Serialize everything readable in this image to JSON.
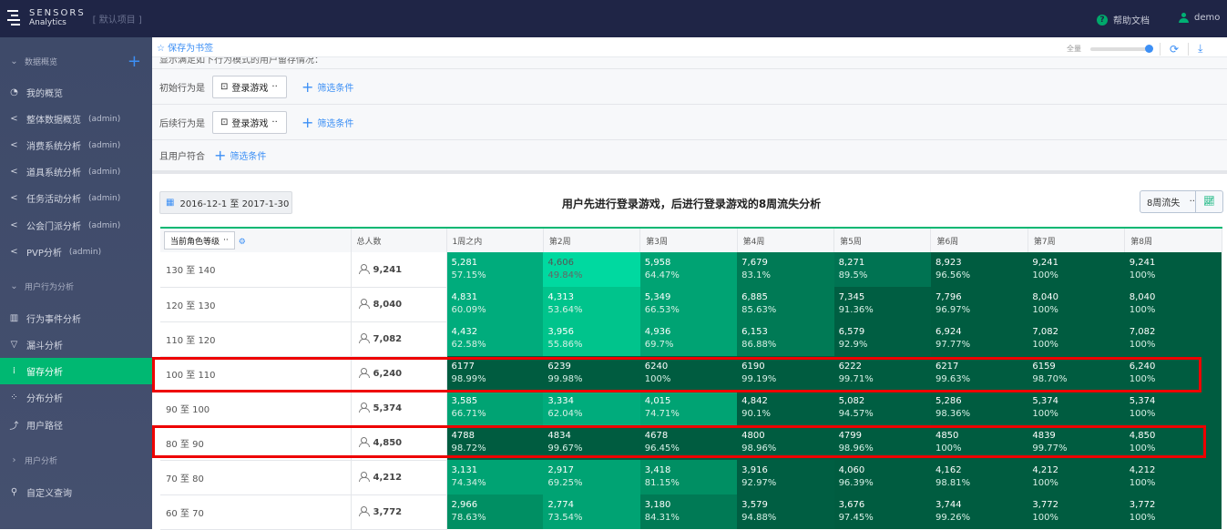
{
  "topbar": {
    "brand_line1": "SENSORS",
    "brand_line2": "Analytics",
    "project": "[ 默认项目 ]",
    "help": "帮助文档",
    "user": "demo"
  },
  "sidebar": {
    "items": [
      {
        "type": "section",
        "label": "数据概览",
        "icon": "chevron-down"
      },
      {
        "label": "我的概览",
        "icon": "dashboard"
      },
      {
        "label": "整体数据概览",
        "suffix": "(admin)",
        "icon": "share"
      },
      {
        "label": "消费系统分析",
        "suffix": "(admin)",
        "icon": "share"
      },
      {
        "label": "道具系统分析",
        "suffix": "(admin)",
        "icon": "share"
      },
      {
        "label": "任务活动分析",
        "suffix": "(admin)",
        "icon": "share"
      },
      {
        "label": "公会门派分析",
        "suffix": "(admin)",
        "icon": "share"
      },
      {
        "label": "PVP分析",
        "suffix": "(admin)",
        "icon": "share"
      },
      {
        "type": "section",
        "label": "用户行为分析",
        "icon": "chevron-down"
      },
      {
        "label": "行为事件分析",
        "icon": "bar-chart"
      },
      {
        "label": "漏斗分析",
        "icon": "funnel"
      },
      {
        "label": "留存分析",
        "icon": "retention",
        "active": true
      },
      {
        "label": "分布分析",
        "icon": "distribution"
      },
      {
        "label": "用户路径",
        "icon": "path"
      },
      {
        "type": "section",
        "label": "用户分析",
        "icon": "chevron-right"
      },
      {
        "label": "自定义查询",
        "icon": "query"
      }
    ]
  },
  "header": {
    "bookmark": "保存为书签",
    "zoom_label": "全量"
  },
  "conditions": {
    "description": "显示满足如下行为模式的用户留存情况：",
    "initial_label": "初始行为是",
    "initial_event": "登录游戏",
    "followup_label": "后续行为是",
    "followup_event": "登录游戏",
    "user_label": "且用户符合",
    "filter_label": "筛选条件"
  },
  "report": {
    "date_range": "2016-12-1 至 2017-1-30",
    "title": "用户先进行登录游戏，后进行登录游戏的8周流失分析",
    "mode_select": "8周流失"
  },
  "table": {
    "group_select": "当前角色等级",
    "total_header": "总人数",
    "week_headers": [
      "1周之内",
      "第2周",
      "第3周",
      "第4周",
      "第5周",
      "第6周",
      "第7周",
      "第8周"
    ],
    "rows": [
      {
        "group": "130 至 140",
        "total": "9,241",
        "cells": [
          [
            "5,281",
            "57.15%"
          ],
          [
            "4,606",
            "49.84%"
          ],
          [
            "5,958",
            "64.47%"
          ],
          [
            "7,679",
            "83.1%"
          ],
          [
            "8,271",
            "89.5%"
          ],
          [
            "8,923",
            "96.56%"
          ],
          [
            "9,241",
            "100%"
          ],
          [
            "9,241",
            "100%"
          ]
        ]
      },
      {
        "group": "120 至 130",
        "total": "8,040",
        "cells": [
          [
            "4,831",
            "60.09%"
          ],
          [
            "4,313",
            "53.64%"
          ],
          [
            "5,349",
            "66.53%"
          ],
          [
            "6,885",
            "85.63%"
          ],
          [
            "7,345",
            "91.36%"
          ],
          [
            "7,796",
            "96.97%"
          ],
          [
            "8,040",
            "100%"
          ],
          [
            "8,040",
            "100%"
          ]
        ]
      },
      {
        "group": "110 至 120",
        "total": "7,082",
        "cells": [
          [
            "4,432",
            "62.58%"
          ],
          [
            "3,956",
            "55.86%"
          ],
          [
            "4,936",
            "69.7%"
          ],
          [
            "6,153",
            "86.88%"
          ],
          [
            "6,579",
            "92.9%"
          ],
          [
            "6,924",
            "97.77%"
          ],
          [
            "7,082",
            "100%"
          ],
          [
            "7,082",
            "100%"
          ]
        ]
      },
      {
        "group": "100 至 110",
        "total": "6,240",
        "highlighted": true,
        "cells": [
          [
            "6177",
            "98.99%"
          ],
          [
            "6239",
            "99.98%"
          ],
          [
            "6240",
            "100%"
          ],
          [
            "6190",
            "99.19%"
          ],
          [
            "6222",
            "99.71%"
          ],
          [
            "6217",
            "99.63%"
          ],
          [
            "6159",
            "98.70%"
          ],
          [
            "6,240",
            "100%"
          ]
        ]
      },
      {
        "group": "90 至 100",
        "total": "5,374",
        "cells": [
          [
            "3,585",
            "66.71%"
          ],
          [
            "3,334",
            "62.04%"
          ],
          [
            "4,015",
            "74.71%"
          ],
          [
            "4,842",
            "90.1%"
          ],
          [
            "5,082",
            "94.57%"
          ],
          [
            "5,286",
            "98.36%"
          ],
          [
            "5,374",
            "100%"
          ],
          [
            "5,374",
            "100%"
          ]
        ]
      },
      {
        "group": "80 至 90",
        "total": "4,850",
        "highlighted": true,
        "cells": [
          [
            "4788",
            "98.72%"
          ],
          [
            "4834",
            "99.67%"
          ],
          [
            "4678",
            "96.45%"
          ],
          [
            "4800",
            "98.96%"
          ],
          [
            "4799",
            "98.96%"
          ],
          [
            "4850",
            "100%"
          ],
          [
            "4839",
            "99.77%"
          ],
          [
            "4,850",
            "100%"
          ]
        ]
      },
      {
        "group": "70 至 80",
        "total": "4,212",
        "cells": [
          [
            "3,131",
            "74.34%"
          ],
          [
            "2,917",
            "69.25%"
          ],
          [
            "3,418",
            "81.15%"
          ],
          [
            "3,916",
            "92.97%"
          ],
          [
            "4,060",
            "96.39%"
          ],
          [
            "4,162",
            "98.81%"
          ],
          [
            "4,212",
            "100%"
          ],
          [
            "4,212",
            "100%"
          ]
        ]
      },
      {
        "group": "60 至 70",
        "total": "3,772",
        "cells": [
          [
            "2,966",
            "78.63%"
          ],
          [
            "2,774",
            "73.54%"
          ],
          [
            "3,180",
            "84.31%"
          ],
          [
            "3,579",
            "94.88%"
          ],
          [
            "3,676",
            "97.45%"
          ],
          [
            "3,744",
            "99.26%"
          ],
          [
            "3,772",
            "100%"
          ],
          [
            "3,772",
            "100%"
          ]
        ]
      }
    ]
  },
  "colors": {
    "accent": "#00b872",
    "link": "#3c8ff5",
    "highlight": "#ee0000",
    "topbar": "#1f2546"
  }
}
